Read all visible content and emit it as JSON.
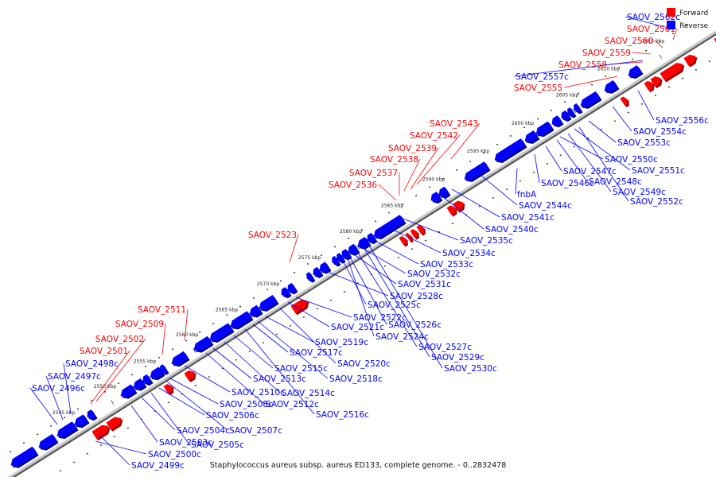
{
  "caption": "Staphylococcus aureus subsp. aureus ED133, complete genome. - 0..2832478",
  "legend": [
    {
      "label": "Forward",
      "color": "#ff0000"
    },
    {
      "label": "Reverse",
      "color": "#0000ff"
    }
  ],
  "colors": {
    "forward": "#ff0000",
    "reverse": "#0000ff",
    "backbone": "#888888"
  },
  "tick_labels": [
    "2545 kbp",
    "2550 kbp",
    "2555 kbp",
    "2560 kbp",
    "2565 kbp",
    "2570 kbp",
    "2575 kbp",
    "2580 kbp",
    "2585 kbp",
    "2590 kbp",
    "2595 kbp",
    "2600 kbp",
    "2605 kbp",
    "2610 kbp",
    "2615 kbp"
  ],
  "forward_genes": [
    "SAOV_2501",
    "SAOV_2502",
    "SAOV_2509",
    "SAOV_2511",
    "SAOV_2523",
    "SAOV_2536",
    "SAOV_2537",
    "SAOV_2538",
    "SAOV_2539",
    "SAOV_2542",
    "SAOV_2543",
    "SAOV_2555",
    "SAOV_2558",
    "SAOV_2559",
    "SAOV_2560",
    "SAOV_2561"
  ],
  "reverse_genes": [
    "SAOV_2562c",
    "SAOV_2557c",
    "SAOV_2496c",
    "SAOV_2497c",
    "SAOV_2498c",
    "SAOV_2499c",
    "SAOV_2500c",
    "SAOV_2503c",
    "SAOV_2504c",
    "SAOV_2505c",
    "SAOV_2506c",
    "SAOV_2507c",
    "SAOV_2508c",
    "SAOV_2510c",
    "SAOV_2512c",
    "SAOV_2513c",
    "SAOV_2514c",
    "SAOV_2515c",
    "SAOV_2516c",
    "SAOV_2517c",
    "SAOV_2518c",
    "SAOV_2519c",
    "SAOV_2520c",
    "SAOV_2521c",
    "SAOV_2522c",
    "SAOV_2524c",
    "SAOV_2525c",
    "SAOV_2526c",
    "SAOV_2527c",
    "SAOV_2528c",
    "SAOV_2529c",
    "SAOV_2530c",
    "SAOV_2531c",
    "SAOV_2532c",
    "SAOV_2533c",
    "SAOV_2534c",
    "SAOV_2535c",
    "SAOV_2540c",
    "SAOV_2541c",
    "SAOV_2544c",
    "fnbA",
    "SAOV_2546c",
    "SAOV_2547c",
    "SAOV_2548c",
    "SAOV_2549c",
    "SAOV_2550c",
    "SAOV_2551c",
    "SAOV_2552c",
    "SAOV_2553c",
    "SAOV_2554c",
    "SAOV_2556c"
  ]
}
